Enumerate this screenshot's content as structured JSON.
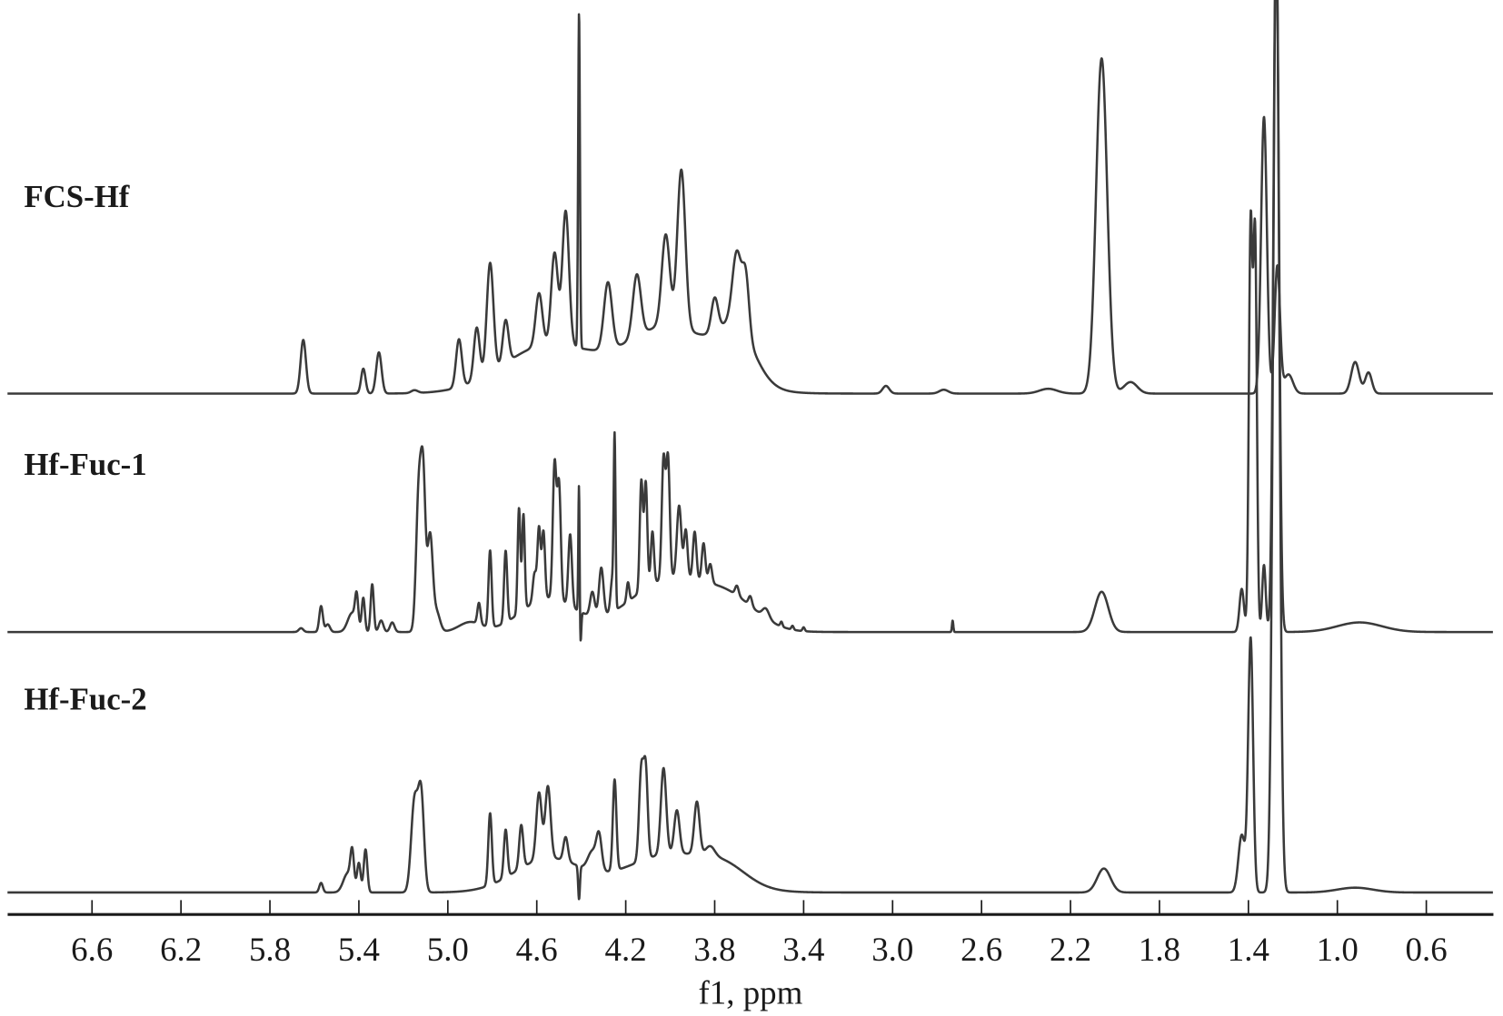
{
  "chart_data": {
    "type": "line",
    "xlabel": "f1, ppm",
    "x_range": [
      6.98,
      0.3
    ],
    "x_reversed": true,
    "y_axis_shown": false,
    "grid": false,
    "line_color": "#3a3a3a",
    "xticks": [
      6.6,
      6.2,
      5.8,
      5.4,
      5.0,
      4.6,
      4.2,
      3.8,
      3.4,
      3.0,
      2.6,
      2.2,
      1.8,
      1.4,
      1.0,
      0.6
    ],
    "xtick_labels": [
      "6.6",
      "6.2",
      "5.8",
      "5.4",
      "5.0",
      "4.6",
      "4.2",
      "3.8",
      "3.4",
      "3.0",
      "2.6",
      "2.2",
      "1.8",
      "1.4",
      "1.0",
      "0.6"
    ],
    "peak_format": [
      "ppm",
      "intensity_au",
      "linewidth_ppm"
    ],
    "series": [
      {
        "name": "FCS-Hf",
        "peaks": [
          [
            5.65,
            56,
            0.012
          ],
          [
            5.38,
            26,
            0.01
          ],
          [
            5.31,
            43,
            0.012
          ],
          [
            5.15,
            3,
            0.015
          ],
          [
            4.55,
            50,
            0.2
          ],
          [
            4.0,
            70,
            0.2
          ],
          [
            3.7,
            50,
            0.08
          ],
          [
            4.95,
            50,
            0.013
          ],
          [
            4.87,
            55,
            0.013
          ],
          [
            4.81,
            115,
            0.015
          ],
          [
            4.74,
            45,
            0.013
          ],
          [
            4.59,
            55,
            0.015
          ],
          [
            4.52,
            95,
            0.015
          ],
          [
            4.47,
            140,
            0.015
          ],
          [
            4.41,
            351,
            0.004
          ],
          [
            4.28,
            70,
            0.018
          ],
          [
            4.15,
            65,
            0.018
          ],
          [
            4.02,
            95,
            0.018
          ],
          [
            3.95,
            165,
            0.018
          ],
          [
            3.8,
            35,
            0.015
          ],
          [
            3.7,
            75,
            0.02
          ],
          [
            3.66,
            60,
            0.015
          ],
          [
            3.03,
            8,
            0.015
          ],
          [
            2.77,
            4,
            0.02
          ],
          [
            2.3,
            5,
            0.04
          ],
          [
            2.06,
            350,
            0.025
          ],
          [
            1.93,
            12,
            0.03
          ],
          [
            1.33,
            289,
            0.013
          ],
          [
            1.27,
            133,
            0.012
          ],
          [
            1.22,
            20,
            0.02
          ],
          [
            0.92,
            33,
            0.018
          ],
          [
            0.86,
            22,
            0.015
          ]
        ]
      },
      {
        "name": "Hf-Fuc-1",
        "peaks": [
          [
            5.66,
            4,
            0.01
          ],
          [
            5.57,
            27,
            0.008
          ],
          [
            5.54,
            8,
            0.01
          ],
          [
            5.43,
            20,
            0.02
          ],
          [
            5.41,
            30,
            0.007
          ],
          [
            5.38,
            35,
            0.007
          ],
          [
            5.34,
            50,
            0.007
          ],
          [
            5.3,
            12,
            0.01
          ],
          [
            5.25,
            10,
            0.01
          ],
          [
            5.13,
            150,
            0.012
          ],
          [
            5.11,
            140,
            0.01
          ],
          [
            5.08,
            100,
            0.012
          ],
          [
            5.05,
            20,
            0.015
          ],
          [
            4.55,
            35,
            0.12
          ],
          [
            4.0,
            55,
            0.18
          ],
          [
            3.72,
            25,
            0.12
          ],
          [
            4.9,
            10,
            0.05
          ],
          [
            4.86,
            22,
            0.007
          ],
          [
            4.81,
            80,
            0.007
          ],
          [
            4.74,
            75,
            0.007
          ],
          [
            4.68,
            110,
            0.006
          ],
          [
            4.66,
            100,
            0.006
          ],
          [
            4.61,
            30,
            0.008
          ],
          [
            4.59,
            75,
            0.007
          ],
          [
            4.57,
            70,
            0.007
          ],
          [
            4.52,
            140,
            0.008
          ],
          [
            4.5,
            120,
            0.008
          ],
          [
            4.45,
            75,
            0.008
          ],
          [
            4.41,
            150,
            0.003
          ],
          [
            4.405,
            -45,
            0.004
          ],
          [
            4.35,
            25,
            0.01
          ],
          [
            4.31,
            50,
            0.01
          ],
          [
            4.26,
            35,
            0.008
          ],
          [
            4.25,
            170,
            0.004
          ],
          [
            4.19,
            20,
            0.006
          ],
          [
            4.13,
            115,
            0.007
          ],
          [
            4.11,
            110,
            0.007
          ],
          [
            4.08,
            55,
            0.007
          ],
          [
            4.03,
            125,
            0.008
          ],
          [
            4.01,
            125,
            0.008
          ],
          [
            3.96,
            75,
            0.01
          ],
          [
            3.93,
            50,
            0.008
          ],
          [
            3.89,
            50,
            0.008
          ],
          [
            3.85,
            40,
            0.008
          ],
          [
            3.82,
            20,
            0.008
          ],
          [
            3.7,
            10,
            0.008
          ],
          [
            3.64,
            10,
            0.008
          ],
          [
            3.57,
            10,
            0.015
          ],
          [
            3.5,
            5,
            0.005
          ],
          [
            3.45,
            4,
            0.005
          ],
          [
            3.4,
            4,
            0.005
          ],
          [
            2.73,
            12,
            0.003
          ],
          [
            2.06,
            42,
            0.03
          ],
          [
            1.43,
            45,
            0.01
          ],
          [
            1.39,
            420,
            0.008
          ],
          [
            1.37,
            410,
            0.008
          ],
          [
            1.33,
            70,
            0.008
          ],
          [
            1.275,
            750,
            0.012
          ],
          [
            0.9,
            10,
            0.1
          ]
        ]
      },
      {
        "name": "Hf-Fuc-2",
        "peaks": [
          [
            5.57,
            10,
            0.008
          ],
          [
            5.45,
            20,
            0.02
          ],
          [
            5.43,
            35,
            0.008
          ],
          [
            5.4,
            30,
            0.008
          ],
          [
            5.37,
            45,
            0.008
          ],
          [
            5.15,
            95,
            0.015
          ],
          [
            5.12,
            100,
            0.013
          ],
          [
            4.55,
            35,
            0.15
          ],
          [
            4.0,
            40,
            0.2
          ],
          [
            3.75,
            15,
            0.1
          ],
          [
            4.81,
            75,
            0.008
          ],
          [
            4.74,
            50,
            0.008
          ],
          [
            4.67,
            45,
            0.009
          ],
          [
            4.59,
            70,
            0.012
          ],
          [
            4.55,
            75,
            0.012
          ],
          [
            4.47,
            25,
            0.01
          ],
          [
            4.41,
            -35,
            0.004
          ],
          [
            4.35,
            20,
            0.02
          ],
          [
            4.32,
            35,
            0.012
          ],
          [
            4.25,
            95,
            0.008
          ],
          [
            4.13,
            95,
            0.01
          ],
          [
            4.11,
            90,
            0.009
          ],
          [
            4.03,
            90,
            0.012
          ],
          [
            3.97,
            45,
            0.012
          ],
          [
            3.88,
            55,
            0.012
          ],
          [
            3.82,
            10,
            0.02
          ],
          [
            2.05,
            25,
            0.03
          ],
          [
            1.43,
            60,
            0.015
          ],
          [
            1.39,
            265,
            0.011
          ],
          [
            1.275,
            1000,
            0.014
          ],
          [
            0.92,
            5,
            0.08
          ]
        ]
      }
    ]
  }
}
